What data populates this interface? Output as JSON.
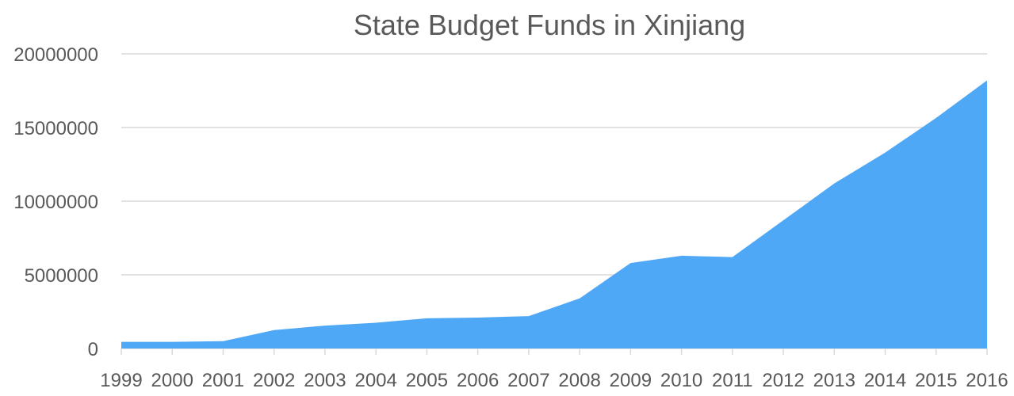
{
  "chart_data": {
    "type": "area",
    "title": "State Budget Funds in Xinjiang",
    "xlabel": "",
    "ylabel": "",
    "categories": [
      "1999",
      "2000",
      "2001",
      "2002",
      "2003",
      "2004",
      "2005",
      "2006",
      "2007",
      "2008",
      "2009",
      "2010",
      "2011",
      "2012",
      "2013",
      "2014",
      "2015",
      "2016"
    ],
    "series": [
      {
        "values": [
          450000,
          450000,
          500000,
          1250000,
          1550000,
          1750000,
          2050000,
          2100000,
          2200000,
          3400000,
          5800000,
          6300000,
          6200000,
          8700000,
          11200000,
          13300000,
          15650000,
          18200000
        ],
        "color": "#4fa8f5"
      }
    ],
    "ylim": [
      0,
      20000000
    ],
    "yticks": [
      "0",
      "5000000",
      "10000000",
      "15000000",
      "20000000"
    ],
    "ytick_values": [
      0,
      5000000,
      10000000,
      15000000,
      20000000
    ],
    "grid": true,
    "legend": "none"
  }
}
